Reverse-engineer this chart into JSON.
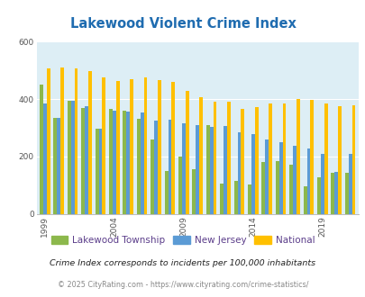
{
  "title": "Lakewood Violent Crime Index",
  "years": [
    1999,
    2000,
    2001,
    2002,
    2003,
    2004,
    2005,
    2006,
    2007,
    2008,
    2009,
    2010,
    2011,
    2012,
    2013,
    2014,
    2015,
    2016,
    2017,
    2018,
    2019,
    2020,
    2021
  ],
  "lakewood": [
    450,
    335,
    395,
    370,
    295,
    365,
    360,
    330,
    260,
    148,
    200,
    155,
    310,
    105,
    115,
    103,
    182,
    183,
    170,
    95,
    128,
    143,
    142
  ],
  "nj": [
    385,
    335,
    393,
    375,
    295,
    358,
    355,
    352,
    325,
    328,
    315,
    308,
    302,
    305,
    285,
    278,
    258,
    250,
    238,
    228,
    208,
    145,
    208
  ],
  "national": [
    508,
    510,
    508,
    498,
    475,
    463,
    470,
    474,
    467,
    460,
    428,
    405,
    390,
    390,
    365,
    373,
    383,
    385,
    400,
    396,
    385,
    375,
    379
  ],
  "lakewood_color": "#8cb84c",
  "nj_color": "#5b9bd5",
  "national_color": "#ffc000",
  "bg_color": "#ddeef5",
  "ylim": [
    0,
    600
  ],
  "yticks": [
    0,
    200,
    400,
    600
  ],
  "xtick_years": [
    1999,
    2004,
    2009,
    2014,
    2019
  ],
  "legend_labels": [
    "Lakewood Township",
    "New Jersey",
    "National"
  ],
  "legend_label_colors": [
    "#7b68a0",
    "#7b68a0",
    "#7b68a0"
  ],
  "footnote1": "Crime Index corresponds to incidents per 100,000 inhabitants",
  "footnote2": "© 2025 CityRating.com - https://www.cityrating.com/crime-statistics/",
  "title_color": "#1f6cb0",
  "footnote1_color": "#222222",
  "footnote2_color": "#888888",
  "bar_width": 0.25
}
